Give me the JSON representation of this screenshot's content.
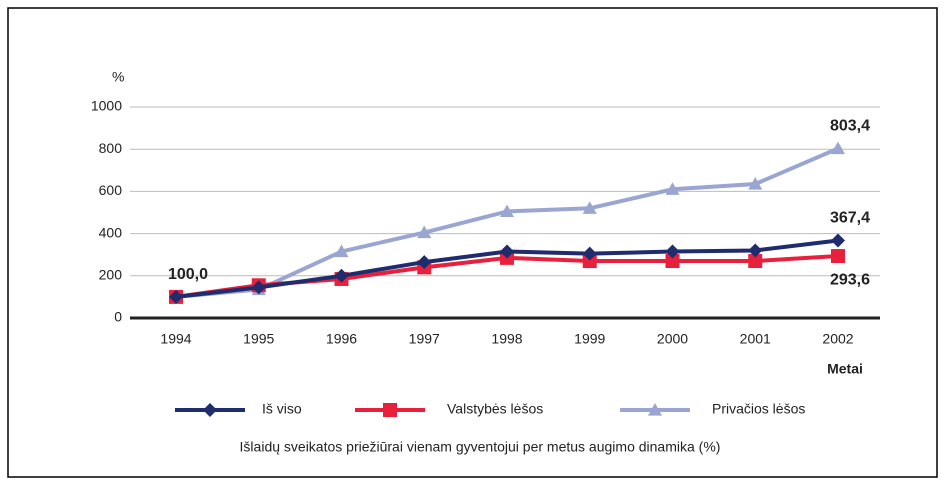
{
  "chart_data": {
    "type": "line",
    "title": "Išlaidų sveikatos priežiūrai vienam gyventojui per metus augimo dinamika (%)",
    "y_label": "%",
    "x_label": "Metai",
    "categories": [
      "1994",
      "1995",
      "1996",
      "1997",
      "1998",
      "1999",
      "2000",
      "2001",
      "2002"
    ],
    "series": [
      {
        "name": "Iš viso",
        "color": "#1f2d6e",
        "marker": "diamond",
        "values": [
          100,
          145,
          200,
          265,
          315,
          305,
          315,
          320,
          367.4
        ],
        "value_labels": [
          "100,0",
          null,
          null,
          null,
          null,
          null,
          null,
          null,
          "367,4"
        ]
      },
      {
        "name": "Valstybės lėšos",
        "color": "#e8203c",
        "marker": "square",
        "values": [
          100,
          155,
          185,
          240,
          285,
          270,
          270,
          270,
          293.6
        ],
        "value_labels": [
          null,
          null,
          null,
          null,
          null,
          null,
          null,
          null,
          "293,6"
        ]
      },
      {
        "name": "Privačios lėšos",
        "color": "#9aa6d1",
        "marker": "triangle",
        "values": [
          100,
          135,
          315,
          405,
          505,
          520,
          610,
          635,
          803.4
        ],
        "value_labels": [
          null,
          null,
          null,
          null,
          null,
          null,
          null,
          null,
          "803,4"
        ]
      }
    ],
    "ylim": [
      0,
      1000
    ],
    "yticks": [
      0,
      200,
      400,
      600,
      800,
      1000
    ],
    "grid": true
  }
}
